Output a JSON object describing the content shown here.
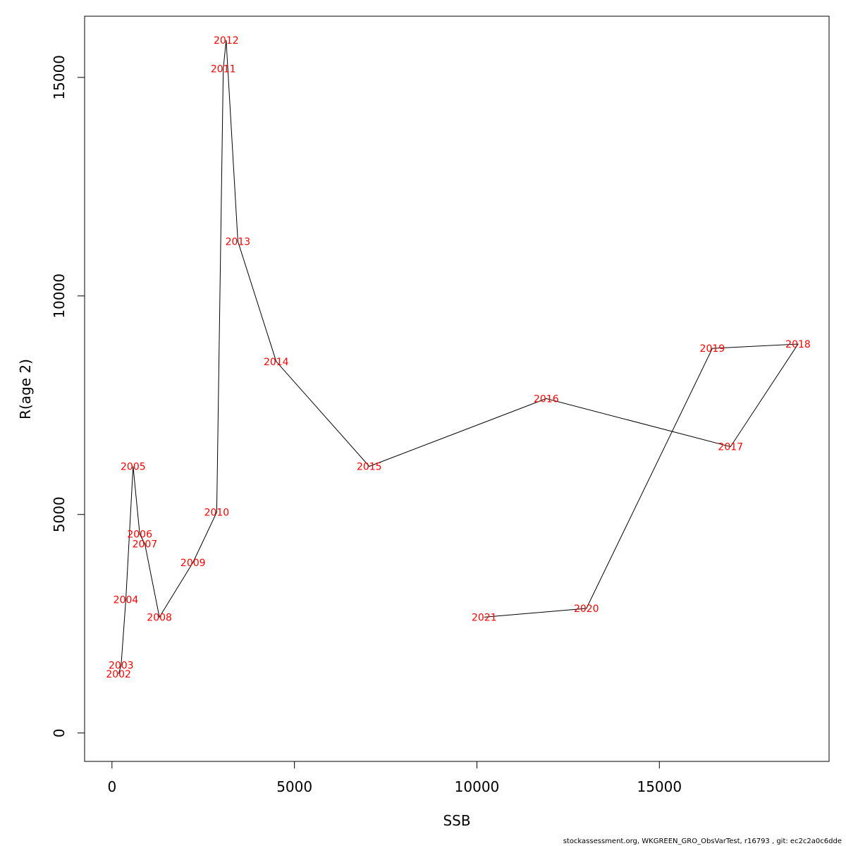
{
  "chart_data": {
    "type": "line",
    "title": "",
    "xlabel": "SSB",
    "ylabel": "R(age 2)",
    "xlim": [
      -750,
      19650
    ],
    "ylim": [
      -650,
      16400
    ],
    "xticks": [
      0,
      5000,
      10000,
      15000
    ],
    "yticks": [
      0,
      5000,
      10000,
      15000
    ],
    "grid": false,
    "line_color": "#000000",
    "label_color": "#ff0000",
    "points": [
      {
        "label": "2002",
        "x": 180,
        "y": 1350
      },
      {
        "label": "2003",
        "x": 250,
        "y": 1550
      },
      {
        "label": "2004",
        "x": 380,
        "y": 3050
      },
      {
        "label": "2005",
        "x": 580,
        "y": 6100
      },
      {
        "label": "2006",
        "x": 760,
        "y": 4550
      },
      {
        "label": "2007",
        "x": 900,
        "y": 4330
      },
      {
        "label": "2008",
        "x": 1300,
        "y": 2650
      },
      {
        "label": "2009",
        "x": 2220,
        "y": 3900
      },
      {
        "label": "2010",
        "x": 2870,
        "y": 5050
      },
      {
        "label": "2011",
        "x": 3050,
        "y": 15200
      },
      {
        "label": "2012",
        "x": 3130,
        "y": 15850
      },
      {
        "label": "2013",
        "x": 3450,
        "y": 11250
      },
      {
        "label": "2014",
        "x": 4500,
        "y": 8500
      },
      {
        "label": "2015",
        "x": 7050,
        "y": 6100
      },
      {
        "label": "2016",
        "x": 11900,
        "y": 7650
      },
      {
        "label": "2017",
        "x": 16950,
        "y": 6550
      },
      {
        "label": "2018",
        "x": 18800,
        "y": 8900
      },
      {
        "label": "2019",
        "x": 16450,
        "y": 8800
      },
      {
        "label": "2020",
        "x": 13000,
        "y": 2850
      },
      {
        "label": "2021",
        "x": 10200,
        "y": 2650
      }
    ]
  },
  "footer": "stockassessment.org, WKGREEN_GRO_ObsVarTest, r16793 , git: ec2c2a0c6dde"
}
